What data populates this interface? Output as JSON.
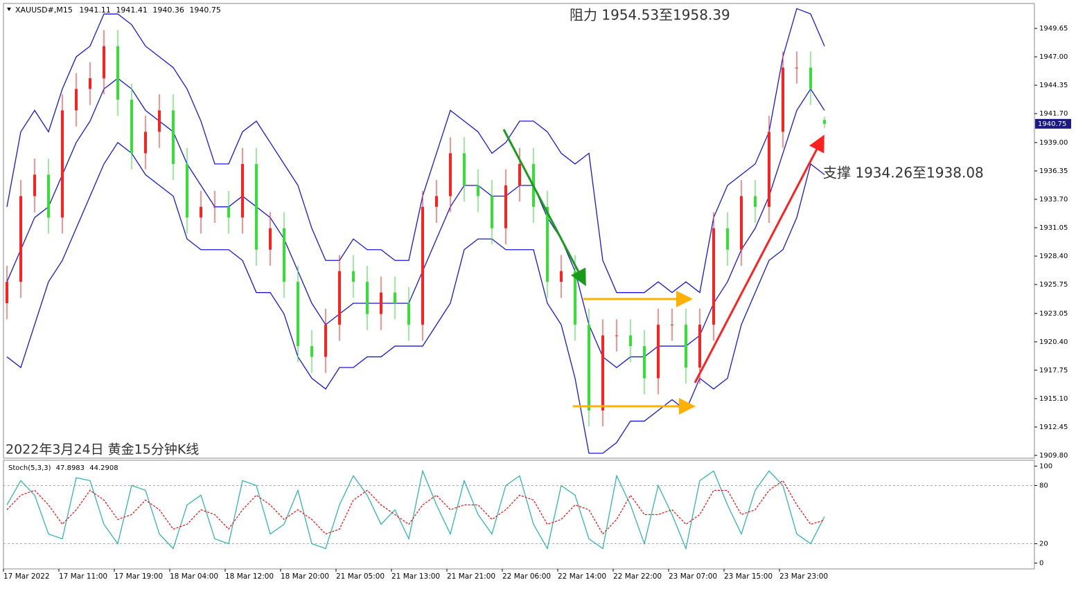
{
  "chart_data": [
    {
      "type": "candlestick",
      "title": "XAUUSD#,M15",
      "annotations": [
        "阻力 1954.53至1958.39",
        "支撑 1934.26至1938.08",
        "2022年3月24日 黄金15分钟K线"
      ],
      "categories": [
        "17 Mar 2022",
        null,
        null,
        null,
        "17 Mar 11:00",
        null,
        null,
        null,
        "17 Mar 19:00",
        null,
        null,
        null,
        "18 Mar 04:00",
        null,
        null,
        null,
        "18 Mar 12:00",
        null,
        null,
        null,
        "18 Mar 20:00",
        null,
        null,
        null,
        "21 Mar 05:00",
        null,
        null,
        null,
        "21 Mar 13:00",
        null,
        null,
        null,
        "21 Mar 21:00",
        null,
        null,
        null,
        "22 Mar 06:00",
        null,
        null,
        null,
        "22 Mar 14:00",
        null,
        null,
        null,
        "22 Mar 22:00",
        null,
        null,
        null,
        "23 Mar 07:00",
        null,
        null,
        null,
        "23 Mar 15:00",
        null,
        null,
        null,
        "23 Mar 23:00",
        null,
        null,
        null
      ],
      "open": [
        1924,
        1926,
        1934,
        1936,
        1932,
        1942,
        1944,
        1945,
        1948,
        1943,
        1938,
        1940,
        1942,
        1937,
        1932,
        1933,
        1933,
        1932,
        1937,
        1929,
        1931,
        1926,
        1920,
        1919,
        1922,
        1927,
        1926,
        1923,
        1925,
        1924,
        1922,
        1933,
        1934,
        1938,
        1935,
        1934,
        1931,
        1935,
        1937,
        1933,
        1926,
        1927,
        1922,
        1914,
        1921,
        1921,
        1920,
        1917,
        1922,
        1922,
        1918,
        1922,
        1931,
        1929,
        1934,
        1933,
        1940,
        1946,
        1946,
        1941.11
      ],
      "high": [
        1927.5,
        1935.5,
        1937.5,
        1937.5,
        1943.5,
        1945.5,
        1946.5,
        1949.5,
        1949.5,
        1944.5,
        1941.5,
        1943.5,
        1943.5,
        1938.5,
        1934.5,
        1934.5,
        1934.5,
        1938.5,
        1938.5,
        1932.5,
        1932.5,
        1927.5,
        1921.5,
        1923.5,
        1928.5,
        1928.5,
        1927.5,
        1926.5,
        1926.5,
        1925.5,
        1934.5,
        1935.5,
        1939.5,
        1939.5,
        1936.5,
        1935.5,
        1936.5,
        1938.5,
        1938.5,
        1934.5,
        1928.5,
        1928.5,
        1923.5,
        1922.5,
        1922.5,
        1922.5,
        1921.5,
        1923.5,
        1923.5,
        1923.5,
        1923.5,
        1932.5,
        1932.5,
        1935.5,
        1935.5,
        1941.5,
        1947.5,
        1947.5,
        1947.5,
        1941.41
      ],
      "low": [
        1922.5,
        1924.5,
        1932.5,
        1930.5,
        1930.5,
        1940.5,
        1942.5,
        1943.5,
        1941.5,
        1936.5,
        1936.5,
        1938.5,
        1935.5,
        1930.5,
        1930.5,
        1931.5,
        1930.5,
        1930.5,
        1927.5,
        1927.5,
        1924.5,
        1918.5,
        1917.5,
        1917.5,
        1920.5,
        1924.5,
        1921.5,
        1921.5,
        1922.5,
        1920.5,
        1920.5,
        1931.5,
        1932.5,
        1933.5,
        1932.5,
        1929.5,
        1929.5,
        1933.5,
        1931.5,
        1924.5,
        1924.5,
        1920.5,
        1912.5,
        1912.5,
        1919.5,
        1918.5,
        1915.5,
        1915.5,
        1920.5,
        1916.5,
        1916.5,
        1920.5,
        1927.5,
        1927.5,
        1931.5,
        1931.5,
        1938.5,
        1944.5,
        1942.5,
        1940.36
      ],
      "close": [
        1926,
        1934,
        1936,
        1932,
        1942,
        1944,
        1945,
        1948,
        1943,
        1938,
        1940,
        1942,
        1937,
        1932,
        1933,
        1933,
        1932,
        1937,
        1929,
        1931,
        1926,
        1920,
        1919,
        1922,
        1927,
        1926,
        1923,
        1925,
        1924,
        1922,
        1933,
        1934,
        1938,
        1935,
        1934,
        1931,
        1935,
        1937,
        1933,
        1926,
        1927,
        1922,
        1914,
        1921,
        1921,
        1920,
        1917,
        1922,
        1922,
        1918,
        1922,
        1931,
        1929,
        1934,
        1933,
        1940,
        1946,
        1946,
        1944,
        1940.75
      ],
      "up_color": "#ff2020",
      "down_color": "#33e033",
      "bands": {
        "color": "#1515e0",
        "upper": [
          1933,
          1940,
          1942,
          1940,
          1944,
          1947,
          1948,
          1951,
          1951,
          1950,
          1948,
          1947,
          1946,
          1944,
          1941,
          1937,
          1937,
          1940,
          1941,
          1939,
          1937,
          1935,
          1931,
          1928,
          1928,
          1930,
          1929,
          1929,
          1928,
          1928,
          1934,
          1938,
          1942,
          1941,
          1940,
          1938,
          1939,
          1941,
          1941,
          1940,
          1938,
          1937,
          1938,
          1928,
          1925,
          1925,
          1925,
          1926,
          1925,
          1926,
          1925,
          1932,
          1935,
          1936,
          1937,
          1940,
          1947,
          1951.5,
          1951,
          1948
        ],
        "middle": [
          1926,
          1929,
          1932,
          1933,
          1936,
          1939,
          1941,
          1944,
          1945,
          1944,
          1942,
          1941,
          1940,
          1937,
          1935,
          1933,
          1933,
          1934,
          1933,
          1932,
          1930,
          1927,
          1924,
          1922,
          1923,
          1924,
          1924,
          1924,
          1924,
          1924,
          1927,
          1930,
          1933,
          1935,
          1935,
          1934,
          1934,
          1935,
          1935,
          1932,
          1930,
          1927,
          1922,
          1919,
          1918,
          1919,
          1919,
          1920,
          1920,
          1920,
          1921,
          1924,
          1926,
          1929,
          1931,
          1934,
          1938,
          1942,
          1944,
          1942
        ],
        "lower": [
          1919,
          1918,
          1922,
          1926,
          1928,
          1931,
          1934,
          1937,
          1939,
          1938,
          1936,
          1935,
          1934,
          1930,
          1929,
          1929,
          1929,
          1928,
          1925,
          1925,
          1923,
          1919,
          1917,
          1916,
          1918,
          1918,
          1919,
          1919,
          1920,
          1920,
          1920,
          1922,
          1924,
          1929,
          1930,
          1930,
          1929,
          1929,
          1929,
          1924,
          1922,
          1917,
          1910,
          1910,
          1911,
          1913,
          1913,
          1914,
          1915,
          1914,
          1917,
          1916,
          1917,
          1922,
          1925,
          1928,
          1929,
          1932,
          1937,
          1936
        ]
      },
      "ylim": [
        1909.54,
        1951.98
      ],
      "yticks": [
        {
          "value": 1909.8,
          "label": "1909.80"
        },
        1912.45,
        {
          "value": 1915.1,
          "label": "1915.10"
        },
        1917.75,
        {
          "value": 1920.4,
          "label": "1920.40"
        },
        1923.05,
        1925.75,
        {
          "value": 1928.4,
          "label": "1928.40"
        },
        1931.05,
        {
          "value": 1933.7,
          "label": "1933.70"
        },
        1936.35,
        {
          "value": 1939,
          "label": "1939.00"
        },
        {
          "value": 1941.7,
          "label": "1941.70"
        },
        1944.35,
        {
          "value": 1947,
          "label": "1947.00"
        },
        1949.65
      ]
    },
    {
      "type": "line",
      "title": "Stoch(5,3,3)",
      "series": [
        {
          "name": "K",
          "color": "#20b2aa",
          "values": [
            60,
            85,
            70,
            30,
            25,
            88,
            85,
            40,
            20,
            80,
            75,
            30,
            15,
            60,
            70,
            25,
            20,
            85,
            80,
            30,
            40,
            75,
            20,
            15,
            60,
            90,
            70,
            40,
            55,
            25,
            95,
            60,
            30,
            85,
            50,
            30,
            80,
            90,
            40,
            15,
            80,
            70,
            25,
            15,
            90,
            60,
            20,
            80,
            50,
            15,
            85,
            95,
            60,
            30,
            75,
            95,
            80,
            30,
            20,
            47.8983
          ]
        },
        {
          "name": "D",
          "color": "#ff0000",
          "values": [
            55,
            70,
            75,
            60,
            40,
            55,
            75,
            65,
            45,
            50,
            65,
            55,
            35,
            40,
            55,
            50,
            35,
            55,
            70,
            60,
            45,
            55,
            45,
            30,
            35,
            65,
            75,
            60,
            50,
            40,
            60,
            70,
            55,
            60,
            60,
            45,
            55,
            70,
            65,
            40,
            45,
            60,
            55,
            30,
            45,
            70,
            50,
            50,
            55,
            40,
            50,
            75,
            75,
            50,
            55,
            75,
            85,
            60,
            40,
            44.2908
          ]
        }
      ],
      "ylim": [
        -6,
        106
      ],
      "yticks": [
        0,
        20,
        80,
        100
      ],
      "levels": [
        20,
        80
      ]
    }
  ]
}
